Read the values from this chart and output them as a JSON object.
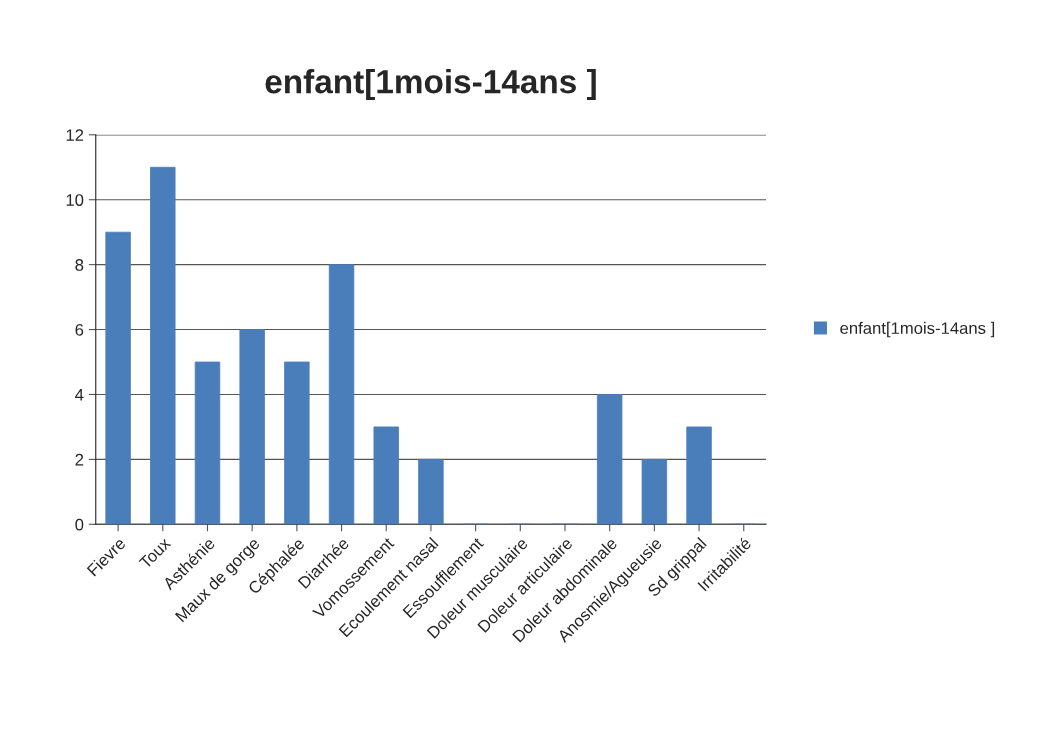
{
  "chart_data": {
    "type": "bar",
    "title": "enfant[1mois-14ans ]",
    "categories": [
      "Fievre",
      "Toux",
      "Asthénie",
      "Maux de gorge",
      "Céphalée",
      "Diarrhée",
      "Vomossement",
      "Ecoulement nasal",
      "Essoufflement",
      "Doleur musculaire",
      "Doleur articulaire",
      "Doleur abdominale",
      "Anosmie/Agueusie",
      "Sd grippal",
      "Irritabilité"
    ],
    "series": [
      {
        "name": "enfant[1mois-14ans ]",
        "color": "#4a7ebb",
        "values": [
          9,
          11,
          5,
          6,
          5,
          8,
          3,
          2,
          0,
          0,
          0,
          4,
          2,
          3,
          0
        ]
      }
    ],
    "ylim": [
      0,
      12
    ],
    "yticks": [
      0,
      2,
      4,
      6,
      8,
      10,
      12
    ],
    "grid": "y",
    "legend": "right"
  }
}
